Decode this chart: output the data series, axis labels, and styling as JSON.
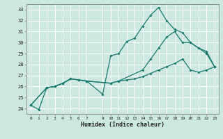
{
  "xlabel": "Humidex (Indice chaleur)",
  "bg_color": "#cce8e0",
  "grid_color": "#ffffff",
  "line_color": "#1a7a6e",
  "xlim": [
    -0.5,
    23.5
  ],
  "ylim": [
    23.5,
    33.5
  ],
  "xticks": [
    0,
    1,
    2,
    3,
    4,
    5,
    6,
    7,
    9,
    10,
    11,
    12,
    13,
    14,
    15,
    16,
    17,
    18,
    19,
    20,
    21,
    22,
    23
  ],
  "yticks": [
    24,
    25,
    26,
    27,
    28,
    29,
    30,
    31,
    32,
    33
  ],
  "line1_x": [
    0,
    1,
    2,
    3,
    4,
    5,
    6,
    7,
    9,
    10,
    11,
    12,
    13,
    14,
    15,
    16,
    17,
    18,
    19,
    20,
    21,
    22,
    23
  ],
  "line1_y": [
    24.3,
    23.9,
    25.9,
    26.0,
    26.3,
    26.7,
    26.6,
    26.5,
    25.3,
    28.8,
    29.0,
    30.1,
    30.4,
    31.5,
    32.5,
    33.2,
    32.0,
    31.2,
    30.9,
    30.0,
    29.5,
    29.0,
    27.8
  ],
  "line2_x": [
    0,
    2,
    3,
    4,
    5,
    6,
    7,
    10,
    11,
    12,
    13,
    14,
    15,
    16,
    17,
    18,
    19,
    20,
    21,
    22,
    23
  ],
  "line2_y": [
    24.3,
    25.9,
    26.0,
    26.3,
    26.7,
    26.6,
    26.5,
    26.3,
    26.5,
    26.6,
    26.7,
    26.9,
    27.2,
    27.5,
    27.8,
    28.1,
    28.5,
    27.5,
    27.3,
    27.5,
    27.8
  ],
  "line3_x": [
    0,
    2,
    3,
    4,
    5,
    6,
    7,
    10,
    11,
    14,
    15,
    16,
    17,
    18,
    19,
    20,
    21,
    22,
    23
  ],
  "line3_y": [
    24.3,
    25.9,
    26.0,
    26.3,
    26.7,
    26.6,
    26.5,
    26.3,
    26.5,
    27.5,
    28.5,
    29.5,
    30.5,
    31.0,
    30.0,
    30.0,
    29.5,
    29.2,
    27.8
  ]
}
